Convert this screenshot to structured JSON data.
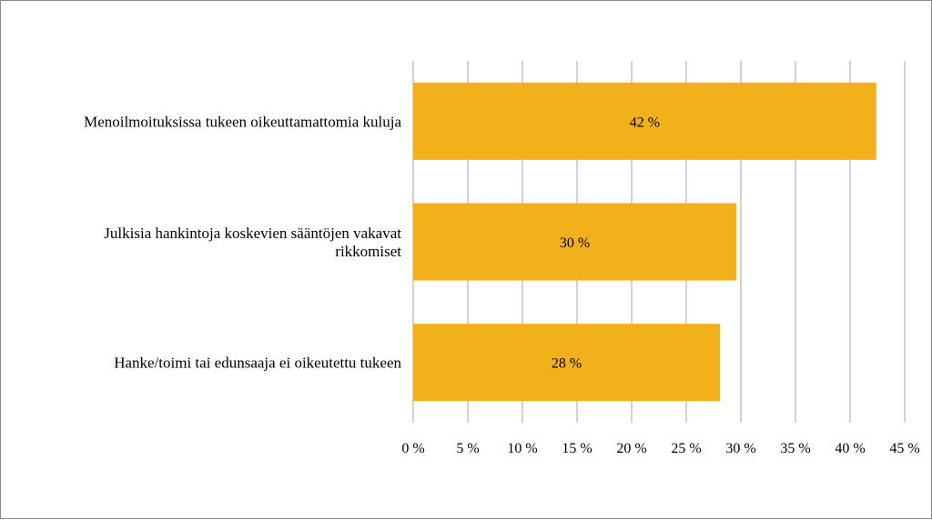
{
  "chart_data": {
    "type": "bar",
    "orientation": "horizontal",
    "categories": [
      [
        "Menoilmoituksissa tukeen oikeuttamattomia kuluja"
      ],
      [
        "Julkisia hankintoja koskevien sääntöjen vakavat",
        "rikkomiset"
      ],
      [
        "Hanke/toimi tai edunsaaja ei oikeutettu tukeen"
      ]
    ],
    "values": [
      42.4,
      29.6,
      28.1
    ],
    "data_labels": [
      "42 %",
      "30 %",
      "28 %"
    ],
    "xlim": [
      0,
      45
    ],
    "x_ticks": [
      0,
      5,
      10,
      15,
      20,
      25,
      30,
      35,
      40,
      45
    ],
    "x_tick_labels": [
      "0 %",
      "5 %",
      "10 %",
      "15 %",
      "20 %",
      "25 %",
      "30 %",
      "35 %",
      "40 %",
      "45 %"
    ],
    "bar_color": "#F2B01A",
    "grid": true,
    "legend": "none"
  }
}
